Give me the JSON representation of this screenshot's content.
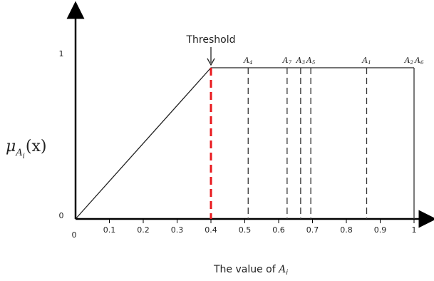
{
  "chart_data": {
    "type": "line",
    "title": "",
    "xlabel": "The value of A_i",
    "xlabel_parts": {
      "prefix": "The value of ",
      "var": "A",
      "sub": "i"
    },
    "ylabel_parts": {
      "mu": "μ",
      "A": "A",
      "sub": "i",
      "arg": "(x)"
    },
    "xlim": [
      0,
      1.05
    ],
    "ylim": [
      0,
      1.17
    ],
    "x_ticks": [
      0.1,
      0.2,
      0.3,
      0.4,
      0.5,
      0.6,
      0.7,
      0.8,
      0.9,
      1
    ],
    "x_tick_labels": [
      "0.1",
      "0.2",
      "0.3",
      "0.4",
      "0.5",
      "0.6",
      "0.7",
      "0.8",
      "0.9",
      "1"
    ],
    "x_origin_label": "0",
    "y_ticks": [
      0,
      1
    ],
    "y_tick_labels": [
      "0",
      "1"
    ],
    "membership_curve": {
      "x": [
        0,
        0.4,
        1
      ],
      "y": [
        0,
        1,
        1
      ]
    },
    "threshold": {
      "x": 0.4,
      "label": "Threshold",
      "color": "#e8191e"
    },
    "markers": [
      {
        "name": "A4",
        "sub": "4",
        "x": 0.51
      },
      {
        "name": "A7",
        "sub": "7",
        "x": 0.625
      },
      {
        "name": "A3",
        "sub": "3",
        "x": 0.665
      },
      {
        "name": "A5",
        "sub": "5",
        "x": 0.695
      },
      {
        "name": "A1",
        "sub": "1",
        "x": 0.86
      },
      {
        "name": "A2 A6",
        "sub": "2",
        "sub2": "6",
        "x": 1
      }
    ],
    "grid": false,
    "colors": {
      "axis": "#000000",
      "line": "#222222",
      "marker": "#333333",
      "threshold": "#e8191e"
    }
  }
}
